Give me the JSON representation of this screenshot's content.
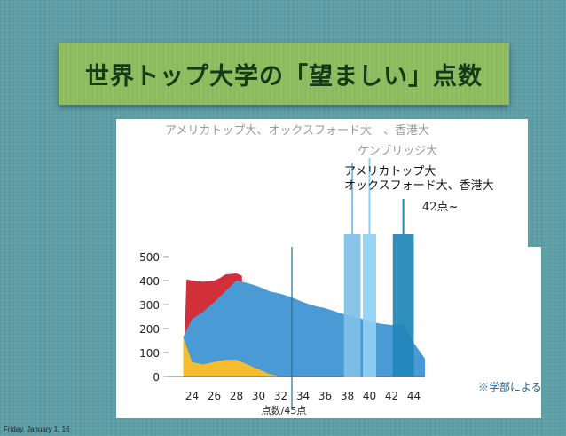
{
  "slide": {
    "title": "世界トップ大学の「望ましい」点数",
    "note": "※学部による",
    "footer": "Friday, January 1, 16"
  },
  "annotations": {
    "label_top": "アメリカトップ大、オックスフォード大　、香港大",
    "label_cambridge": "ケンブリッジ大",
    "label_group_line1": "アメリカトップ大",
    "label_group_line2": "オックスフォード大、香港大",
    "label_points": "42点~"
  },
  "chart_data": {
    "type": "area",
    "xlabel": "点数/45点",
    "ylabel": "",
    "x_ticks": [
      "24",
      "26",
      "28",
      "30",
      "32",
      "34",
      "36",
      "38",
      "40",
      "42",
      "44"
    ],
    "y_ticks": [
      "0",
      "100",
      "200",
      "300",
      "400",
      "500"
    ],
    "xlim": [
      23,
      45
    ],
    "ylim": [
      0,
      500
    ],
    "series": [
      {
        "color": "#d1303a",
        "x": [
          23.2,
          23.5,
          24,
          25,
          26,
          26.5,
          27,
          28,
          28.5
        ],
        "values": [
          0,
          405,
          400,
          395,
          400,
          410,
          425,
          430,
          420
        ]
      },
      {
        "color": "#4a9ad6",
        "x": [
          23.2,
          24,
          25,
          26,
          27,
          28,
          29,
          30,
          31,
          32,
          33,
          34,
          35,
          36,
          37,
          38,
          39,
          40,
          41,
          42,
          43,
          44,
          45
        ],
        "values": [
          165,
          240,
          270,
          310,
          355,
          400,
          390,
          375,
          355,
          345,
          330,
          310,
          295,
          285,
          270,
          255,
          245,
          230,
          220,
          215,
          220,
          140,
          75
        ]
      },
      {
        "color": "#f5bd2e",
        "x": [
          23.2,
          24,
          25,
          26,
          27,
          28,
          29,
          30,
          31,
          32
        ],
        "values": [
          165,
          60,
          50,
          60,
          70,
          70,
          50,
          30,
          10,
          0
        ]
      }
    ],
    "markers": [
      {
        "x_from": 37.7,
        "x_to": 39.2,
        "color": "#7fc0e6"
      },
      {
        "x_from": 39.4,
        "x_to": 40.6,
        "color": "#8fd0f2"
      },
      {
        "x_from": 42.1,
        "x_to": 44.0,
        "color": "#1f86b8"
      }
    ],
    "reference_line_x": 33
  }
}
